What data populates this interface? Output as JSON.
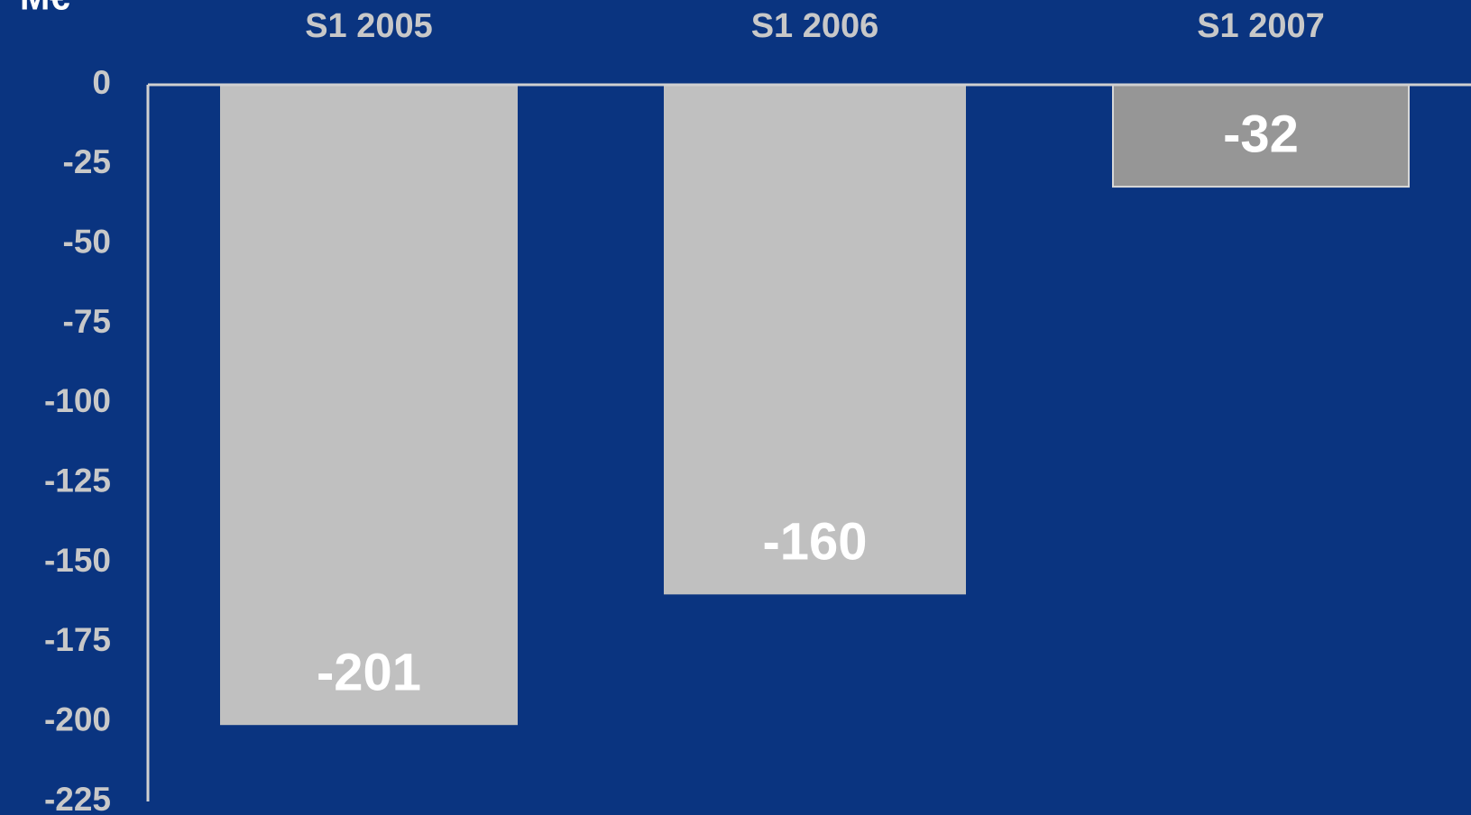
{
  "chart_data": {
    "type": "bar",
    "axis_label": "M€",
    "categories": [
      "S1 2005",
      "S1 2006",
      "S1 2007"
    ],
    "values": [
      -201,
      -160,
      -32
    ],
    "colors": [
      "#c0c0c0",
      "#c0c0c0",
      "#969696"
    ],
    "ylim": [
      -225,
      0
    ],
    "yticks": [
      0,
      -25,
      -50,
      -75,
      -100,
      -125,
      -150,
      -175,
      -200,
      -225
    ],
    "grid": false
  }
}
